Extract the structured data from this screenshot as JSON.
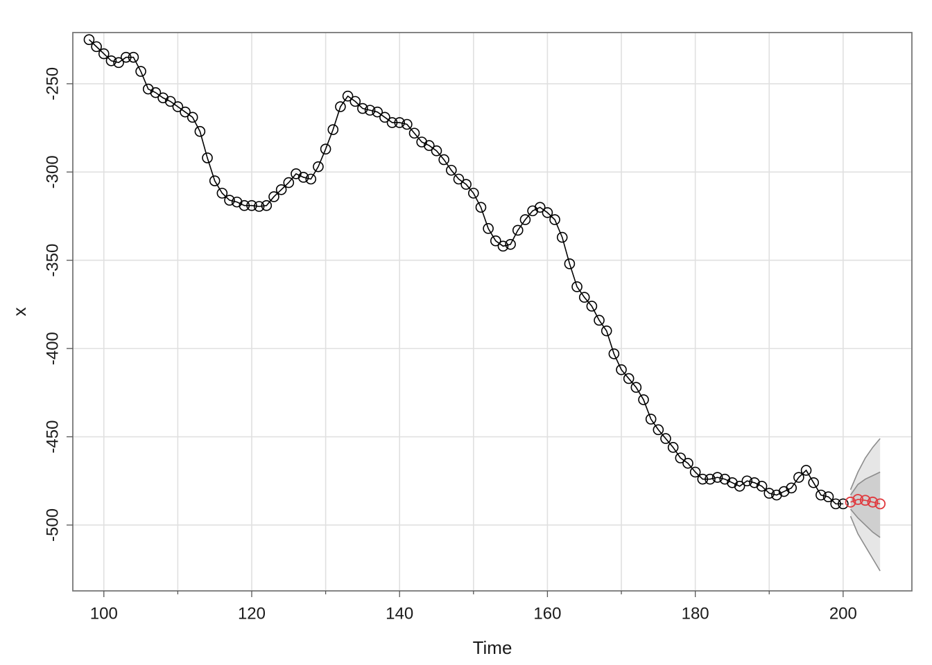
{
  "chart_data": {
    "type": "forecast",
    "x_label": "Time",
    "y_label": "x",
    "xlim": [
      95.8,
      209.3
    ],
    "ylim": [
      -537.3,
      -221
    ],
    "xticks": [
      100,
      120,
      140,
      160,
      180,
      200
    ],
    "x_minor_ticks": [
      110,
      130,
      150,
      170,
      190
    ],
    "yticks": [
      -500,
      -450,
      -400,
      -350,
      -300,
      -250
    ],
    "grid": true,
    "observed": {
      "color": "#000000",
      "x": [
        98,
        99,
        100,
        101,
        102,
        103,
        104,
        105,
        106,
        107,
        108,
        109,
        110,
        111,
        112,
        113,
        114,
        115,
        116,
        117,
        118,
        119,
        120,
        121,
        122,
        123,
        124,
        125,
        126,
        127,
        128,
        129,
        130,
        131,
        132,
        133,
        134,
        135,
        136,
        137,
        138,
        139,
        140,
        141,
        142,
        143,
        144,
        145,
        146,
        147,
        148,
        149,
        150,
        151,
        152,
        153,
        154,
        155,
        156,
        157,
        158,
        159,
        160,
        161,
        162,
        163,
        164,
        165,
        166,
        167,
        168,
        169,
        170,
        171,
        172,
        173,
        174,
        175,
        176,
        177,
        178,
        179,
        180,
        181,
        182,
        183,
        184,
        185,
        186,
        187,
        188,
        189,
        190,
        191,
        192,
        193,
        194,
        195,
        196,
        197,
        198,
        199,
        200
      ],
      "values": [
        -225,
        -229,
        -233,
        -237,
        -238,
        -235,
        -235,
        -243,
        -253,
        -255,
        -258,
        -260,
        -263,
        -266,
        -269,
        -277,
        -292,
        -305,
        -312,
        -316,
        -317,
        -319,
        -319,
        -319.5,
        -319,
        -314,
        -310,
        -306,
        -301,
        -303,
        -304,
        -297,
        -287,
        -276,
        -263,
        -257,
        -260,
        -264,
        -265,
        -266,
        -269,
        -272,
        -272,
        -273,
        -278,
        -283,
        -285,
        -288,
        -293,
        -299,
        -304,
        -307,
        -312,
        -320,
        -332,
        -339,
        -342,
        -341,
        -333,
        -327,
        -322,
        -320,
        -323,
        -327,
        -337,
        -352,
        -365,
        -371,
        -376,
        -384,
        -390,
        -403,
        -412,
        -417,
        -422,
        -429,
        -440,
        -446,
        -451,
        -456,
        -462,
        -465,
        -470,
        -474,
        -474,
        -473,
        -474,
        -476,
        -478,
        -475,
        -476,
        -478,
        -482,
        -483,
        -481,
        -479,
        -473,
        -469,
        -476,
        -483,
        -484,
        -488,
        -488
      ]
    },
    "forecast": {
      "color": "#e0393e",
      "x": [
        201,
        202,
        203,
        204,
        205
      ],
      "values": [
        -487,
        -485.5,
        -486,
        -487,
        -488
      ]
    },
    "intervals": [
      {
        "color": "#e6e6e6",
        "edge": "#8c8c8c",
        "x": [
          201,
          202,
          203,
          204,
          205
        ],
        "upper": [
          -480,
          -470,
          -462,
          -456,
          -451
        ],
        "lower": [
          -495,
          -505,
          -512,
          -519,
          -526
        ]
      },
      {
        "color": "#cfcfcf",
        "edge": "#8c8c8c",
        "x": [
          201,
          202,
          203,
          204,
          205
        ],
        "upper": [
          -483,
          -477,
          -474,
          -472,
          -470
        ],
        "lower": [
          -491,
          -496,
          -500,
          -504,
          -507
        ]
      }
    ]
  }
}
